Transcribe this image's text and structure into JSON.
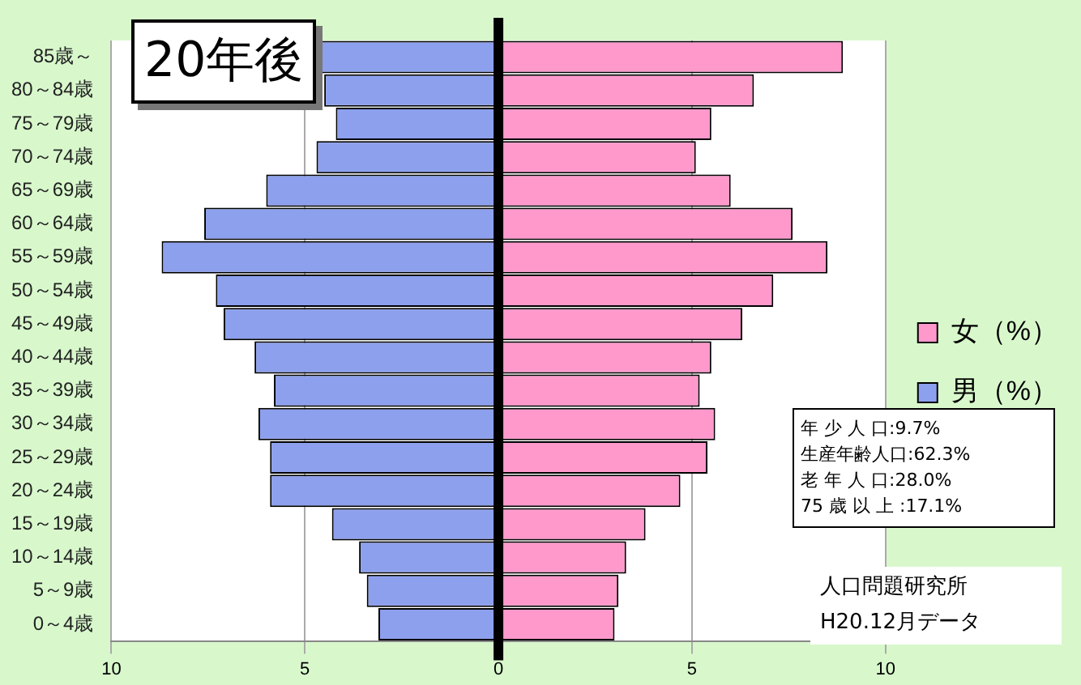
{
  "chart_data": {
    "type": "bar",
    "orientation": "horizontal",
    "stacked": true,
    "title": "20年後",
    "categories": [
      "85歳～",
      "80～84歳",
      "75～79歳",
      "70～74歳",
      "65～69歳",
      "60～64歳",
      "55～59歳",
      "50～54歳",
      "45～49歳",
      "40～44歳",
      "35～39歳",
      "30～34歳",
      "25～29歳",
      "20～24歳",
      "15～19歳",
      "10～14歳",
      "5～9歳",
      "0～4歳"
    ],
    "series": [
      {
        "name": "女（%）",
        "color": "#ff99cc",
        "values": [
          8.9,
          6.6,
          5.5,
          5.1,
          6.0,
          7.6,
          8.5,
          7.1,
          6.3,
          5.5,
          5.2,
          5.6,
          5.4,
          4.7,
          3.8,
          3.3,
          3.1,
          3.0
        ]
      },
      {
        "name": "男（%）",
        "color": "#8ca0ee",
        "values": [
          -4.6,
          -4.5,
          -4.2,
          -4.7,
          -6.0,
          -7.6,
          -8.7,
          -7.3,
          -7.1,
          -6.3,
          -5.8,
          -6.2,
          -5.9,
          -5.9,
          -4.3,
          -3.6,
          -3.4,
          -3.1
        ]
      }
    ],
    "xlim": [
      -10,
      10
    ],
    "xticks": [
      {
        "value": -10,
        "label": "10"
      },
      {
        "value": -5,
        "label": "5"
      },
      0,
      5,
      10
    ],
    "grid": "x",
    "legend": "right",
    "ref_lines": [
      {
        "axis": "x",
        "value": 0,
        "color": "#000000"
      }
    ],
    "annotations": [
      "年 少 人 口:9.7%",
      "生産年齢人口:62.3%",
      "老 年 人 口:28.0%",
      "75 歳 以 上 :17.1%",
      "人口問題研究所",
      "H20.12月データ"
    ]
  }
}
